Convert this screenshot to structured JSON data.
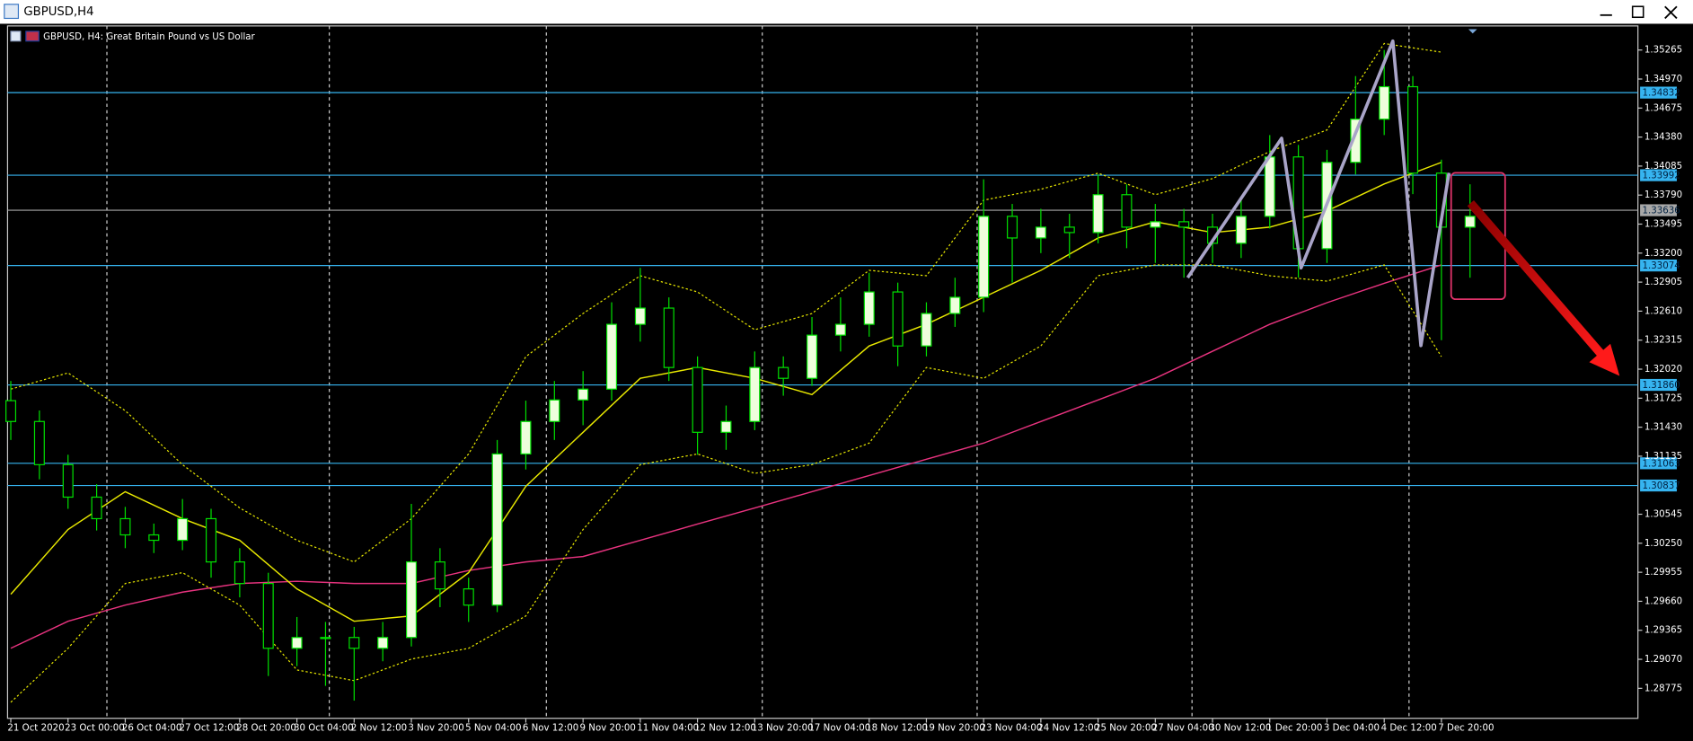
{
  "window": {
    "title": "GBPUSD,H4"
  },
  "chart_data": {
    "type": "candlestick",
    "title": "GBPUSD, H4:  Great Britain Pound vs US Dollar",
    "categories": [
      "21 Oct 2020",
      "23 Oct 00:00",
      "26 Oct 04:00",
      "27 Oct 12:00",
      "28 Oct 20:00",
      "30 Oct 04:00",
      "2 Nov 12:00",
      "3 Nov 20:00",
      "5 Nov 04:00",
      "6 Nov 12:00",
      "9 Nov 20:00",
      "11 Nov 04:00",
      "12 Nov 12:00",
      "13 Nov 20:00",
      "17 Nov 04:00",
      "18 Nov 12:00",
      "19 Nov 20:00",
      "23 Nov 04:00",
      "24 Nov 12:00",
      "25 Nov 20:00",
      "27 Nov 04:00",
      "30 Nov 12:00",
      "1 Dec 20:00",
      "3 Dec 04:00",
      "4 Dec 12:00",
      "7 Dec 20:00"
    ],
    "open": [
      1.317,
      1.31488,
      1.31049,
      1.30719,
      1.305,
      1.30335,
      1.3028,
      1.305,
      1.3006,
      1.29841,
      1.29182,
      1.29292,
      1.29292,
      1.29182,
      1.29292,
      1.3006,
      1.29786,
      1.29621,
      1.31158,
      1.31488,
      1.31707,
      1.31817,
      1.32476,
      1.32641,
      1.32037,
      1.31378,
      1.31488,
      1.32037,
      1.31927,
      1.32366,
      1.32476,
      1.32805,
      1.32256,
      1.32586,
      1.32751,
      1.33574,
      1.33354,
      1.33464,
      1.33409,
      1.33794,
      1.33464,
      1.33519,
      1.33464,
      1.333,
      1.33574,
      1.34178,
      1.33245,
      1.34123,
      1.34562,
      1.34892,
      1.34013,
      1.33464
    ],
    "high": [
      1.319,
      1.316,
      1.3115,
      1.3085,
      1.3062,
      1.3045,
      1.307,
      1.306,
      1.302,
      1.2995,
      1.295,
      1.2945,
      1.294,
      1.2945,
      1.3065,
      1.302,
      1.299,
      1.313,
      1.317,
      1.319,
      1.32,
      1.327,
      1.3305,
      1.3275,
      1.3215,
      1.3165,
      1.322,
      1.3215,
      1.3255,
      1.3275,
      1.33,
      1.329,
      1.327,
      1.3295,
      1.3395,
      1.337,
      1.3365,
      1.336,
      1.34,
      1.339,
      1.337,
      1.3365,
      1.336,
      1.3375,
      1.344,
      1.343,
      1.3425,
      1.35,
      1.35265,
      1.35,
      1.3415,
      1.339
    ],
    "low": [
      1.313,
      1.309,
      1.306,
      1.3038,
      1.302,
      1.3015,
      1.3018,
      1.299,
      1.297,
      1.289,
      1.29,
      1.288,
      1.2865,
      1.2905,
      1.292,
      1.296,
      1.2945,
      1.2955,
      1.31,
      1.313,
      1.3145,
      1.317,
      1.323,
      1.319,
      1.3115,
      1.312,
      1.314,
      1.3175,
      1.3185,
      1.322,
      1.3235,
      1.3205,
      1.3215,
      1.3245,
      1.326,
      1.329,
      1.332,
      1.3315,
      1.333,
      1.3325,
      1.331,
      1.3295,
      1.331,
      1.3315,
      1.3345,
      1.3295,
      1.331,
      1.34,
      1.344,
      1.338,
      1.32315,
      1.3295
    ],
    "close": [
      1.31488,
      1.31049,
      1.30719,
      1.305,
      1.30335,
      1.3028,
      1.305,
      1.3006,
      1.29841,
      1.29182,
      1.29292,
      1.29292,
      1.29182,
      1.29292,
      1.3006,
      1.29786,
      1.29621,
      1.31158,
      1.31488,
      1.31707,
      1.31817,
      1.32476,
      1.32641,
      1.32037,
      1.31378,
      1.31488,
      1.32037,
      1.31927,
      1.32366,
      1.32476,
      1.32805,
      1.32256,
      1.32586,
      1.32751,
      1.33574,
      1.33354,
      1.33464,
      1.33409,
      1.33794,
      1.33464,
      1.33519,
      1.33464,
      1.333,
      1.33574,
      1.34178,
      1.33245,
      1.34123,
      1.34562,
      1.34892,
      1.34013,
      1.33464,
      1.33574
    ],
    "up_color": "#eefedc",
    "down_color": "#000000",
    "wick_color": "#00e000",
    "lines": [
      {
        "color": "#e8337f",
        "style": "solid",
        "values": [
          1.29182,
          1.29457,
          1.29621,
          1.29753,
          1.29841,
          1.29863,
          1.29841,
          1.29841,
          1.29973,
          1.3006,
          1.30115,
          1.3028,
          1.30445,
          1.30609,
          1.30774,
          1.30939,
          1.31104,
          1.31268,
          1.31488,
          1.31707,
          1.31927,
          1.32202,
          1.32476,
          1.32696,
          1.32893,
          1.3308
        ]
      },
      {
        "color": "#e8e800",
        "style": "solid",
        "values": [
          1.29731,
          1.3039,
          1.30774,
          1.305,
          1.3028,
          1.29786,
          1.29457,
          1.29511,
          1.29951,
          1.30829,
          1.31378,
          1.31927,
          1.32037,
          1.31927,
          1.31762,
          1.32256,
          1.32476,
          1.32751,
          1.33025,
          1.33354,
          1.33519,
          1.33409,
          1.33464,
          1.33629,
          1.33903,
          1.34123
        ]
      },
      {
        "color": "#e8e800",
        "style": "dotted",
        "values": [
          1.31817,
          1.31982,
          1.31598,
          1.31049,
          1.30609,
          1.3028,
          1.3006,
          1.305,
          1.31158,
          1.32147,
          1.32586,
          1.3297,
          1.32805,
          1.32421,
          1.32586,
          1.33025,
          1.3297,
          1.33739,
          1.33849,
          1.34013,
          1.33794,
          1.33958,
          1.34233,
          1.34452,
          1.35331,
          1.35243
        ]
      },
      {
        "color": "#e8e800",
        "style": "dotted",
        "values": [
          1.28633,
          1.29182,
          1.29841,
          1.29951,
          1.29621,
          1.28962,
          1.28853,
          1.29072,
          1.29182,
          1.29511,
          1.3039,
          1.31049,
          1.31158,
          1.30961,
          1.31049,
          1.31268,
          1.32037,
          1.31927,
          1.32256,
          1.3297,
          1.3308,
          1.3308,
          1.3297,
          1.32915,
          1.3308,
          1.32147
        ]
      }
    ],
    "levels": [
      {
        "value": 1.34832,
        "label": "1.34832",
        "color": "#36b4f0"
      },
      {
        "value": 1.33992,
        "label": "1.33992",
        "color": "#36b4f0"
      },
      {
        "value": 1.33636,
        "label": "1.33636",
        "color": "#a8a8a8"
      },
      {
        "value": 1.33074,
        "label": "1.33074",
        "color": "#36b4f0"
      },
      {
        "value": 1.3186,
        "label": "1.31860",
        "color": "#36b4f0"
      },
      {
        "value": 1.31063,
        "label": "1.31063",
        "color": "#36b4f0"
      },
      {
        "value": 1.30837,
        "label": "1.30837",
        "color": "#36b4f0"
      }
    ],
    "ylim": [
      1.2847,
      1.3551
    ],
    "yticks": [
      1.35265,
      {
        "value": 1.3497,
        "label": "1.34970"
      },
      1.34675,
      {
        "value": 1.3438,
        "label": "1.34380"
      },
      1.34085,
      {
        "value": 1.3379,
        "label": "1.33790"
      },
      1.33495,
      {
        "value": 1.332,
        "label": "1.33200"
      },
      1.32905,
      {
        "value": 1.3261,
        "label": "1.32610"
      },
      1.32315,
      {
        "value": 1.3202,
        "label": "1.32020"
      },
      1.31725,
      {
        "value": 1.3143,
        "label": "1.31430"
      },
      1.31135,
      1.30545,
      {
        "value": 1.3025,
        "label": "1.30250"
      },
      1.29955,
      {
        "value": 1.2966,
        "label": "1.29660"
      },
      1.29365,
      {
        "value": 1.2907,
        "label": "1.29070"
      },
      1.28775
    ]
  }
}
